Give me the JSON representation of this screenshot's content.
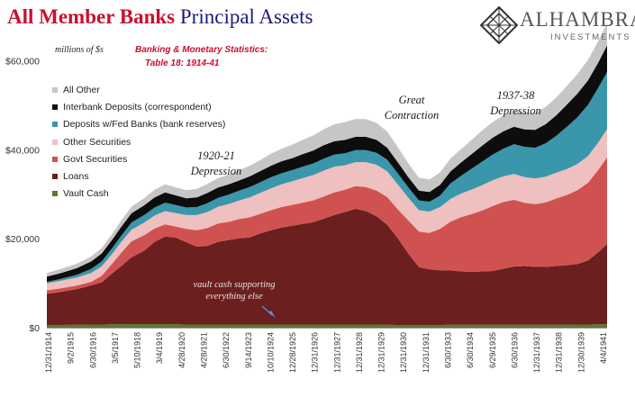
{
  "header": {
    "title_part1": "All Member Banks",
    "title_part2": "Principal Assets",
    "logo_name": "ALHAMBRA",
    "logo_sub": "INVESTMENTS"
  },
  "chart_data": {
    "type": "area",
    "stacked": true,
    "units_label": "millions of $s",
    "source_line1": "Banking & Monetary Statistics:",
    "source_line2": "Table 18: 1914-41",
    "legend_position": "top-left",
    "grid": false,
    "ylim": [
      0,
      70000
    ],
    "yticks": [
      "$0",
      "$20,000",
      "$40,000",
      "$60,000"
    ],
    "ytick_values": [
      0,
      20000,
      40000,
      60000
    ],
    "xtick_labels": [
      "12/31/1914",
      "9/2/1915",
      "6/30/1916",
      "3/5/1917",
      "5/10/1918",
      "3/4/1919",
      "4/28/1920",
      "4/28/1921",
      "6/30/1922",
      "9/14/1923",
      "10/10/1924",
      "12/28/1925",
      "12/31/1926",
      "12/31/1927",
      "12/31/1928",
      "12/31/1929",
      "12/31/1930",
      "12/31/1931",
      "6/30/1933",
      "6/30/1934",
      "6/29/1935",
      "6/30/1936",
      "12/31/1937",
      "12/31/1938",
      "12/30/1939",
      "4/4/1941"
    ],
    "x": [
      1914.9,
      1915.5,
      1916.3,
      1917.0,
      1917.5,
      1918.0,
      1918.4,
      1918.9,
      1919.5,
      1920.0,
      1920.5,
      1921.0,
      1921.5,
      1922.0,
      1922.5,
      1923.0,
      1923.5,
      1924.0,
      1924.5,
      1925.0,
      1925.5,
      1926.0,
      1926.5,
      1927.0,
      1927.5,
      1928.0,
      1928.5,
      1929.0,
      1929.5,
      1930.0,
      1930.5,
      1931.0,
      1931.5,
      1932.0,
      1932.5,
      1933.0,
      1933.5,
      1934.0,
      1934.5,
      1935.0,
      1935.5,
      1936.0,
      1936.5,
      1937.0,
      1937.5,
      1938.0,
      1938.5,
      1939.0,
      1939.5,
      1940.0,
      1940.5,
      1941.0,
      1941.4
    ],
    "series": [
      {
        "name": "Vault Cash",
        "color": "#5b7a2e",
        "values": [
          600,
          600,
          650,
          700,
          700,
          750,
          750,
          800,
          800,
          800,
          800,
          750,
          700,
          700,
          700,
          700,
          700,
          700,
          700,
          700,
          700,
          700,
          700,
          700,
          700,
          700,
          700,
          700,
          700,
          700,
          700,
          650,
          600,
          600,
          600,
          600,
          600,
          650,
          650,
          650,
          650,
          650,
          650,
          650,
          650,
          650,
          650,
          650,
          650,
          700,
          700,
          750,
          750
        ]
      },
      {
        "name": "Loans",
        "color": "#6b1f1f",
        "values": [
          7000,
          7400,
          8000,
          8800,
          9500,
          11500,
          13000,
          15000,
          16500,
          18500,
          19700,
          19500,
          18500,
          17500,
          17700,
          18600,
          19000,
          19400,
          19600,
          20500,
          21200,
          21800,
          22200,
          22600,
          23000,
          23800,
          24600,
          25300,
          26000,
          25500,
          24300,
          22500,
          19500,
          16000,
          13000,
          12500,
          12300,
          12200,
          12000,
          11900,
          12000,
          12100,
          12600,
          13100,
          13200,
          13000,
          13000,
          13200,
          13400,
          13600,
          14400,
          16300,
          18000
        ]
      },
      {
        "name": "Govt Securities",
        "color": "#cf5250",
        "values": [
          800,
          800,
          800,
          800,
          1500,
          2200,
          3000,
          3600,
          3500,
          3000,
          2700,
          2500,
          3000,
          3700,
          4000,
          4100,
          4100,
          4300,
          4500,
          4400,
          4500,
          4600,
          4700,
          4800,
          4900,
          5000,
          5100,
          5000,
          5100,
          5400,
          5800,
          6200,
          6500,
          7500,
          8000,
          8200,
          9300,
          11000,
          12200,
          13000,
          13700,
          14600,
          15000,
          15000,
          14200,
          14100,
          14500,
          15200,
          15800,
          16600,
          17500,
          18500,
          19500
        ]
      },
      {
        "name": "Other Securities",
        "color": "#eec0bf",
        "values": [
          1600,
          1700,
          1800,
          2000,
          2100,
          2200,
          2400,
          2600,
          2800,
          2900,
          3000,
          3000,
          3100,
          3400,
          3600,
          3800,
          4000,
          4200,
          4500,
          4700,
          4900,
          5100,
          5300,
          5500,
          5700,
          5800,
          5800,
          5500,
          5400,
          5600,
          5800,
          5800,
          5600,
          5100,
          4800,
          4800,
          4900,
          5100,
          5300,
          5500,
          5700,
          5800,
          5800,
          5800,
          5800,
          5800,
          5800,
          5800,
          5800,
          5900,
          6000,
          6200,
          6400
        ]
      },
      {
        "name": "Deposits w/Fed Banks (bank reserves)",
        "color": "#3a96aa",
        "values": [
          300,
          400,
          600,
          900,
          1100,
          1300,
          1400,
          1600,
          1700,
          1800,
          1900,
          1800,
          1700,
          1800,
          2000,
          2000,
          2100,
          2200,
          2300,
          2400,
          2500,
          2500,
          2500,
          2600,
          2600,
          2700,
          2700,
          2700,
          2700,
          2700,
          2700,
          2600,
          2500,
          2300,
          2200,
          2200,
          2600,
          3500,
          4000,
          4700,
          5300,
          5800,
          6200,
          6700,
          6800,
          6900,
          7500,
          8300,
          9500,
          10500,
          11500,
          12300,
          12800
        ]
      },
      {
        "name": "Interbank Deposits (correspondent)",
        "color": "#0d0d0d",
        "values": [
          1200,
          1300,
          1500,
          1700,
          1800,
          1900,
          2000,
          2100,
          2200,
          2300,
          2300,
          2200,
          2100,
          2200,
          2300,
          2300,
          2300,
          2300,
          2400,
          2500,
          2600,
          2700,
          2700,
          2800,
          2900,
          3000,
          3000,
          3000,
          3000,
          3000,
          2900,
          2700,
          2500,
          2300,
          2200,
          2200,
          2400,
          2700,
          3000,
          3300,
          3600,
          3800,
          3900,
          3900,
          3900,
          4000,
          4300,
          4600,
          5000,
          5300,
          5500,
          5700,
          6000
        ]
      },
      {
        "name": "All Other",
        "color": "#c6c6c6",
        "values": [
          800,
          900,
          1000,
          1100,
          1200,
          1300,
          1400,
          1500,
          1600,
          1700,
          1800,
          1800,
          1800,
          1900,
          2000,
          2100,
          2200,
          2300,
          2400,
          2500,
          2700,
          2800,
          3000,
          3200,
          3400,
          3600,
          3800,
          4000,
          4000,
          4000,
          3800,
          3600,
          3400,
          3100,
          2900,
          2800,
          2800,
          2900,
          3000,
          3200,
          3400,
          3500,
          3600,
          3700,
          3800,
          3800,
          3900,
          4000,
          4200,
          4400,
          4600,
          4800,
          5000
        ]
      }
    ],
    "annotations": [
      {
        "text_line1": "1920-21",
        "text_line2": "Depression"
      },
      {
        "text_line1": "Great",
        "text_line2": "Contraction"
      },
      {
        "text_line1": "1937-38",
        "text_line2": "Depression"
      }
    ],
    "note_line1": "vault cash supporting",
    "note_line2": "everything else"
  }
}
